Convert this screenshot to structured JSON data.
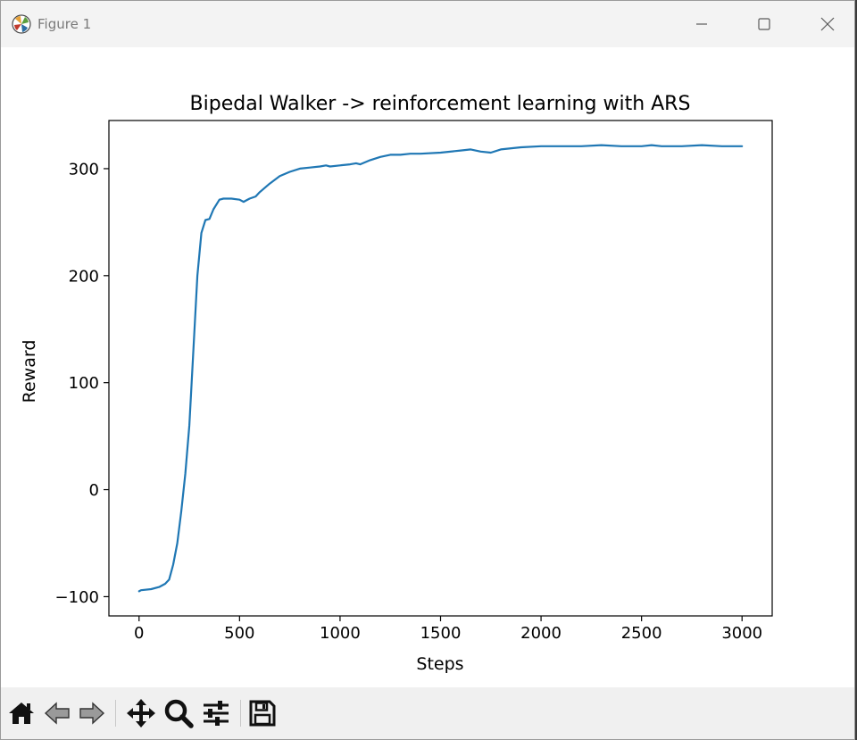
{
  "window": {
    "title": "Figure 1",
    "controls": [
      "minimize-icon",
      "maximize-icon",
      "close-icon"
    ]
  },
  "toolbar": {
    "buttons": [
      "home-icon",
      "back-arrow-icon",
      "forward-arrow-icon",
      "pan-icon",
      "zoom-icon",
      "configure-subplots-icon",
      "save-icon"
    ]
  },
  "chart_data": {
    "type": "line",
    "title": "Bipedal Walker -> reinforcement learning with ARS",
    "xlabel": "Steps",
    "ylabel": "Reward",
    "xlim": [
      -150,
      3150
    ],
    "ylim": [
      -118,
      345
    ],
    "xticks": [
      0,
      500,
      1000,
      1500,
      2000,
      2500,
      3000
    ],
    "xtick_labels": [
      "0",
      "500",
      "1000",
      "1500",
      "2000",
      "2500",
      "3000"
    ],
    "yticks": [
      -100,
      0,
      100,
      200,
      300
    ],
    "ytick_labels": [
      "−100",
      "0",
      "100",
      "200",
      "300"
    ],
    "grid": false,
    "legend": "none",
    "series": [
      {
        "color": "#1f77b4",
        "x": [
          0,
          10,
          60,
          100,
          130,
          150,
          170,
          190,
          210,
          230,
          250,
          270,
          290,
          310,
          330,
          350,
          370,
          380,
          400,
          420,
          440,
          460,
          500,
          520,
          530,
          550,
          580,
          600,
          650,
          700,
          750,
          800,
          850,
          900,
          930,
          950,
          1000,
          1050,
          1080,
          1100,
          1150,
          1200,
          1250,
          1300,
          1350,
          1400,
          1500,
          1600,
          1650,
          1700,
          1750,
          1800,
          1900,
          2000,
          2100,
          2200,
          2300,
          2400,
          2500,
          2550,
          2600,
          2700,
          2800,
          2900,
          3000
        ],
        "y": [
          -95,
          -94,
          -93,
          -91,
          -88,
          -84,
          -70,
          -50,
          -20,
          15,
          60,
          130,
          200,
          240,
          252,
          253,
          262,
          265,
          271,
          272,
          272,
          272,
          271,
          269,
          270,
          272,
          274,
          278,
          286,
          293,
          297,
          300,
          301,
          302,
          303,
          302,
          303,
          304,
          305,
          304,
          308,
          311,
          313,
          313,
          314,
          314,
          315,
          317,
          318,
          316,
          315,
          318,
          320,
          321,
          321,
          321,
          322,
          321,
          321,
          322,
          321,
          321,
          322,
          321,
          321
        ]
      }
    ]
  }
}
